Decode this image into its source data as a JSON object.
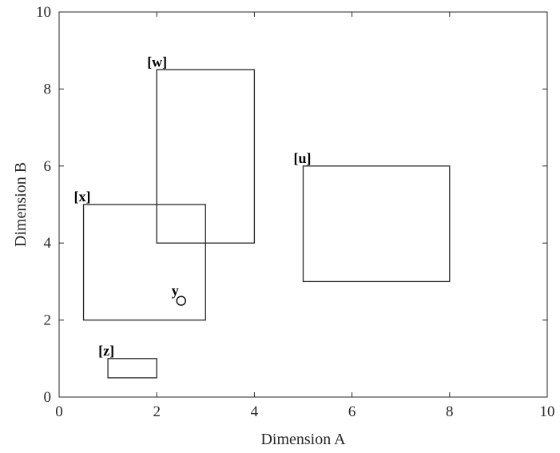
{
  "chart_data": {
    "type": "scatter",
    "xlabel": "Dimension A",
    "ylabel": "Dimension B",
    "xlim": [
      0,
      10
    ],
    "ylim": [
      0,
      10
    ],
    "xticks": [
      0,
      2,
      4,
      6,
      8,
      10
    ],
    "yticks": [
      0,
      2,
      4,
      6,
      8,
      10
    ],
    "grid": false,
    "legend": "none",
    "line_color": "#262626",
    "rectangles": [
      {
        "label": "[w]",
        "x_min": 2,
        "x_max": 4,
        "y_min": 4,
        "y_max": 8.5
      },
      {
        "label": "[u]",
        "x_min": 5,
        "x_max": 8,
        "y_min": 3,
        "y_max": 6
      },
      {
        "label": "[x]",
        "x_min": 0.5,
        "x_max": 3,
        "y_min": 2,
        "y_max": 5
      },
      {
        "label": "[z]",
        "x_min": 1,
        "x_max": 2,
        "y_min": 0.5,
        "y_max": 1
      }
    ],
    "points": [
      {
        "label": "y",
        "x": 2.5,
        "y": 2.5,
        "marker": "open-circle"
      }
    ]
  }
}
